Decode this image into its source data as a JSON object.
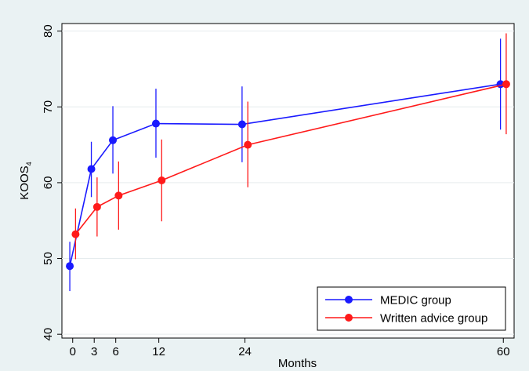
{
  "chart_data": {
    "type": "line",
    "title": "",
    "xlabel": "Months",
    "ylabel": "KOOS",
    "ylabel_subscript": "4",
    "x_ticks": [
      0,
      3,
      6,
      12,
      24,
      60
    ],
    "y_ticks": [
      40,
      50,
      60,
      70,
      80
    ],
    "xlim": [
      -1.5,
      61.5
    ],
    "ylim": [
      39.5,
      81
    ],
    "grid": true,
    "legend_position": "bottom-right",
    "series": [
      {
        "name": "MEDIC group",
        "color": "#1a1aff",
        "points": [
          {
            "x": -0.4,
            "y": 49.0,
            "lo": 45.7,
            "hi": 52.2
          },
          {
            "x": 2.6,
            "y": 61.8,
            "lo": 58.1,
            "hi": 65.4
          },
          {
            "x": 5.6,
            "y": 65.6,
            "lo": 61.2,
            "hi": 70.1
          },
          {
            "x": 11.6,
            "y": 67.8,
            "lo": 63.3,
            "hi": 72.4
          },
          {
            "x": 23.6,
            "y": 67.7,
            "lo": 62.7,
            "hi": 72.7
          },
          {
            "x": 59.6,
            "y": 73.0,
            "lo": 67.0,
            "hi": 79.0
          }
        ]
      },
      {
        "name": "Written advice group",
        "color": "#ff1a1a",
        "points": [
          {
            "x": 0.4,
            "y": 53.2,
            "lo": 49.9,
            "hi": 56.6
          },
          {
            "x": 3.4,
            "y": 56.8,
            "lo": 52.9,
            "hi": 60.7
          },
          {
            "x": 6.4,
            "y": 58.3,
            "lo": 53.8,
            "hi": 62.8
          },
          {
            "x": 12.4,
            "y": 60.3,
            "lo": 54.9,
            "hi": 65.7
          },
          {
            "x": 24.4,
            "y": 65.0,
            "lo": 59.4,
            "hi": 70.7
          },
          {
            "x": 60.4,
            "y": 73.0,
            "lo": 66.4,
            "hi": 79.7
          }
        ]
      }
    ]
  }
}
